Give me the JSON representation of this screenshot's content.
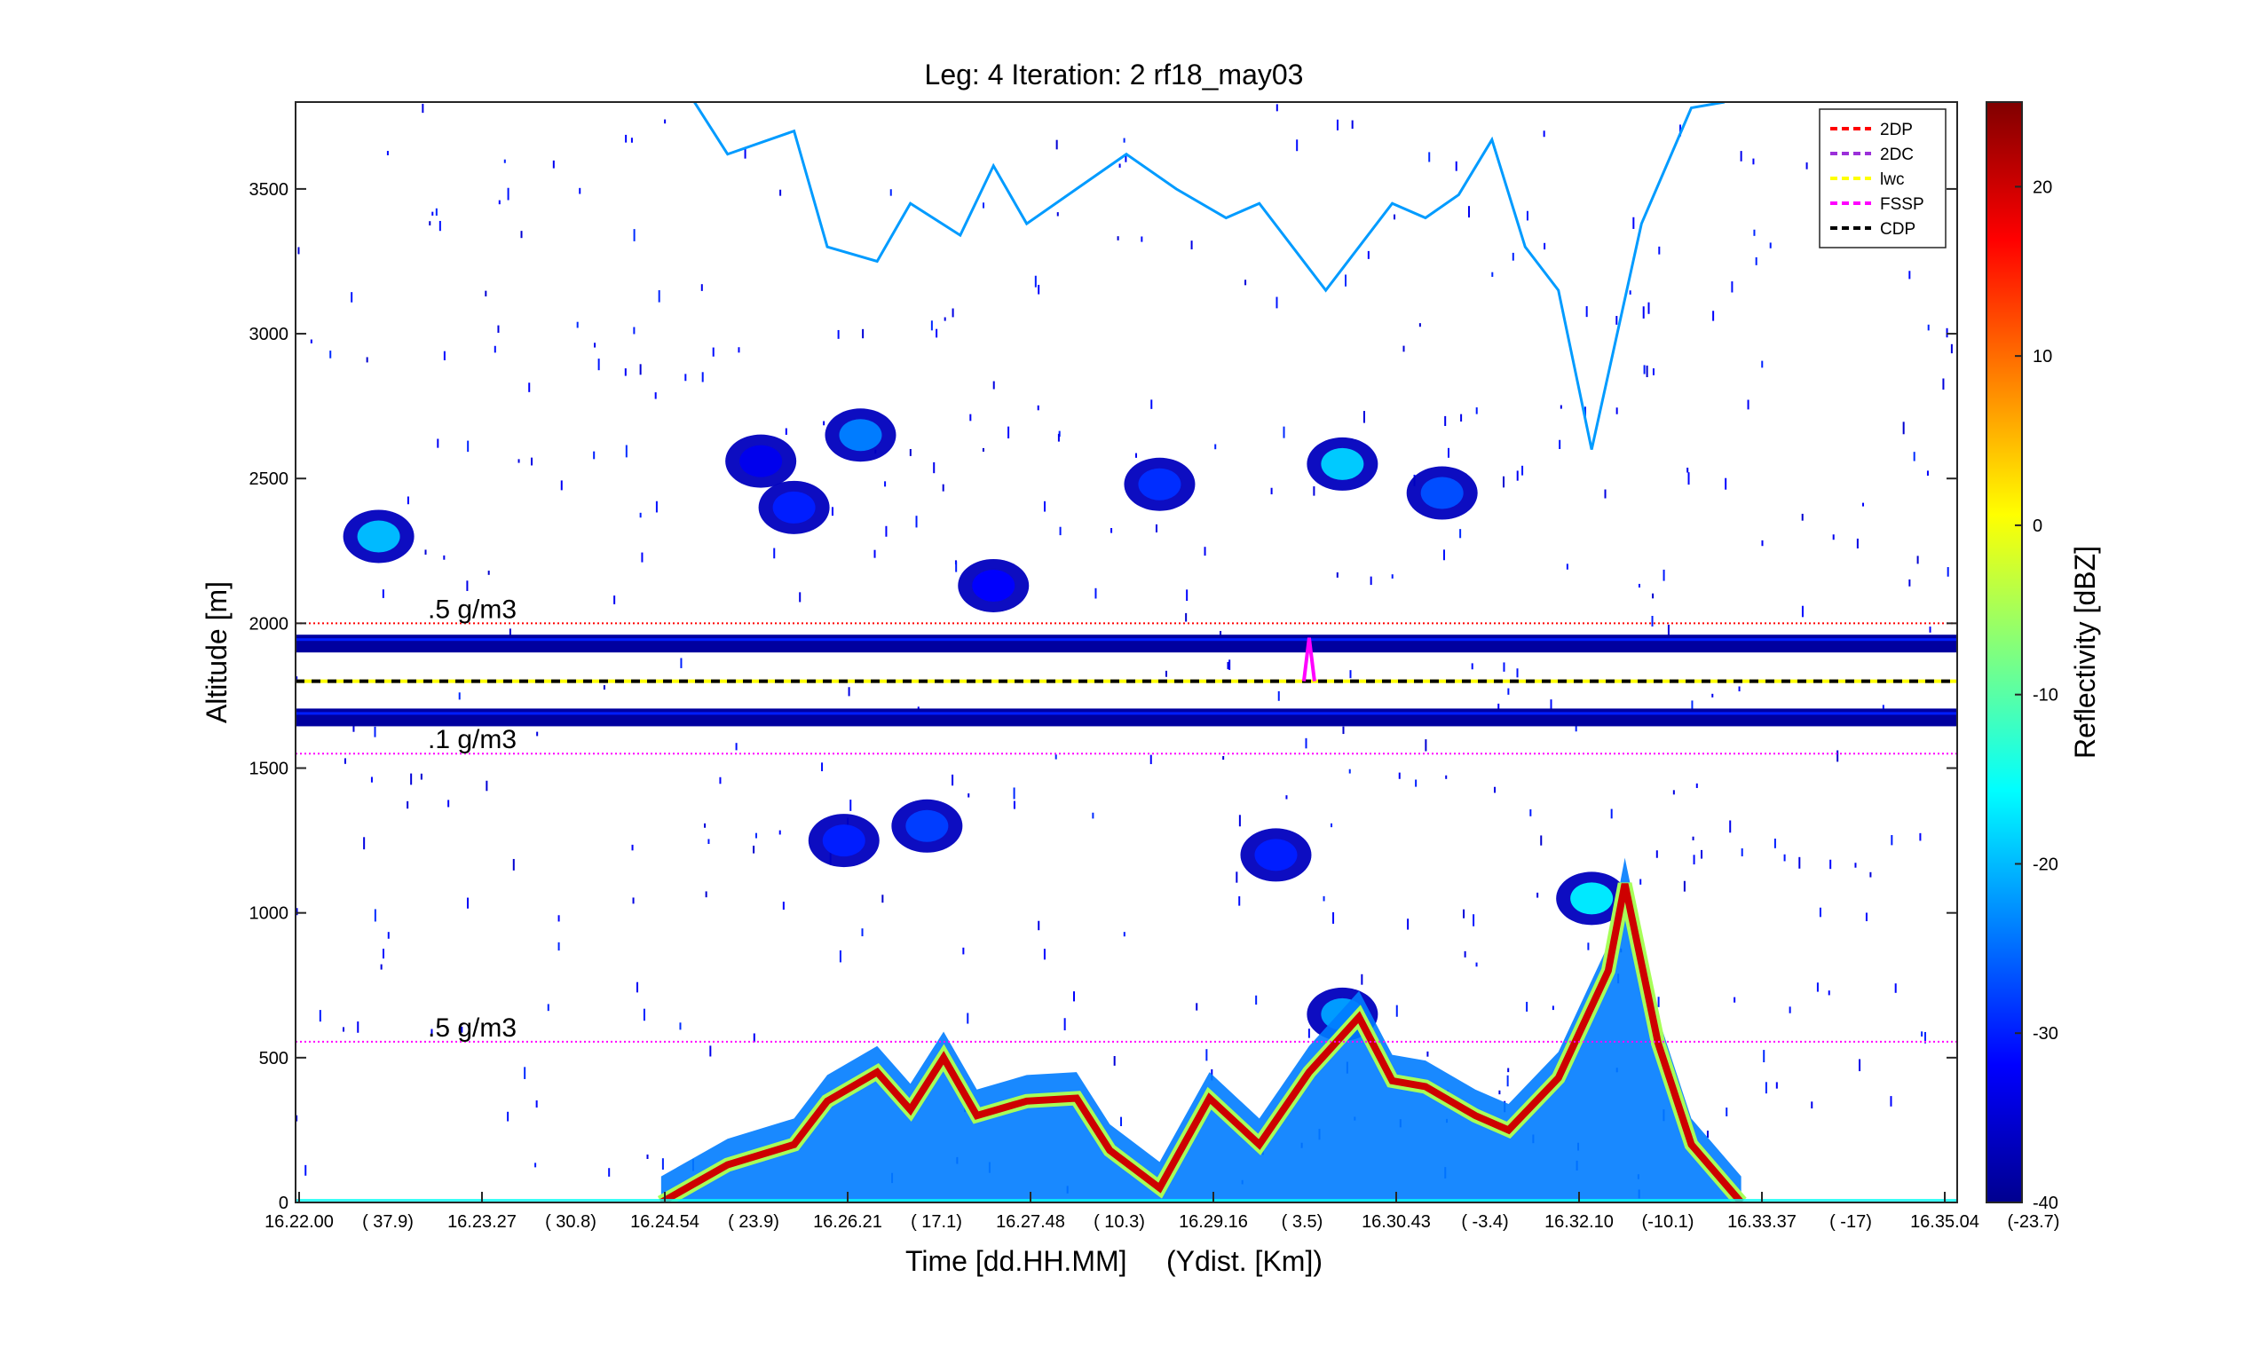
{
  "chart_data": {
    "type": "heatmap",
    "title": "Leg: 4  Iteration: 2  rf18_may03",
    "xlabel": "Time [dd.HH.MM]     (Ydist. [Km])",
    "ylabel": "Altitude [m]",
    "colorbar_label": "Reflectivity [dBZ]",
    "ylim": [
      0,
      3800
    ],
    "yticks": [
      0,
      500,
      1000,
      1500,
      2000,
      2500,
      3000,
      3500
    ],
    "xticks": [
      {
        "time": "16.22.00",
        "ydist": "( 37.9)"
      },
      {
        "time": "16.23.27",
        "ydist": "( 30.8)"
      },
      {
        "time": "16.24.54",
        "ydist": "( 23.9)"
      },
      {
        "time": "16.26.21",
        "ydist": "( 17.1)"
      },
      {
        "time": "16.27.48",
        "ydist": "( 10.3)"
      },
      {
        "time": "16.29.16",
        "ydist": "(  3.5)"
      },
      {
        "time": "16.30.43",
        "ydist": "( -3.4)"
      },
      {
        "time": "16.32.10",
        "ydist": "(-10.1)"
      },
      {
        "time": "16.33.37",
        "ydist": "( -17)"
      },
      {
        "time": "16.35.04",
        "ydist": "(-23.7)"
      }
    ],
    "colorbar": {
      "range": [
        -40,
        25
      ],
      "ticks": [
        -40,
        -30,
        -20,
        -10,
        0,
        10,
        20
      ],
      "colormap": "jet"
    },
    "legend": {
      "placement": "top-right",
      "entries": [
        {
          "label": "2DP",
          "color": "#ff0000"
        },
        {
          "label": "2DC",
          "color": "#9b30d9"
        },
        {
          "label": "lwc",
          "color": "#ffff00"
        },
        {
          "label": "FSSP",
          "color": "#ff00ff"
        },
        {
          "label": "CDP",
          "color": "#000000"
        }
      ]
    },
    "reference_lines": [
      {
        "label": ".5 g/m3",
        "altitude": 2000,
        "color": "#ff0000"
      },
      {
        "label": ".1 g/m3",
        "altitude": 1550,
        "color": "#ff00ff"
      },
      {
        "label": ".5 g/m3",
        "altitude": 555,
        "color": "#ff00ff"
      }
    ],
    "instrument_baseline_altitude": 1800,
    "aircraft_bands": [
      {
        "center_altitude": 1930,
        "dbz": -38
      },
      {
        "center_altitude": 1675,
        "dbz": -38
      }
    ],
    "boundary_layer_top": {
      "x_frac": [
        0.22,
        0.26,
        0.3,
        0.32,
        0.35,
        0.37,
        0.39,
        0.41,
        0.44,
        0.47,
        0.49,
        0.52,
        0.55,
        0.58,
        0.61,
        0.64,
        0.66,
        0.68,
        0.71,
        0.73,
        0.76,
        0.79,
        0.8,
        0.82,
        0.84,
        0.87
      ],
      "altitude": [
        0,
        130,
        200,
        350,
        450,
        320,
        500,
        300,
        350,
        360,
        180,
        50,
        360,
        200,
        450,
        640,
        420,
        400,
        300,
        250,
        430,
        800,
        1100,
        550,
        200,
        0
      ],
      "dbz": 20
    },
    "thin_cloud_trace": {
      "x_frac": [
        0.24,
        0.26,
        0.3,
        0.32,
        0.35,
        0.37,
        0.4,
        0.42,
        0.44,
        0.47,
        0.5,
        0.53,
        0.56,
        0.58,
        0.6,
        0.62,
        0.64,
        0.66,
        0.68,
        0.7,
        0.72,
        0.74,
        0.76,
        0.78,
        0.81,
        0.84,
        0.86
      ],
      "altitude": [
        3800,
        3620,
        3700,
        3300,
        3250,
        3450,
        3340,
        3580,
        3380,
        3500,
        3620,
        3500,
        3400,
        3450,
        3300,
        3150,
        3300,
        3450,
        3400,
        3480,
        3670,
        3300,
        3150,
        2600,
        3380,
        3780,
        3800
      ],
      "dbz": -22
    },
    "cloud_patches": [
      {
        "x_frac": 0.05,
        "altitude": 2300,
        "dbz": -20
      },
      {
        "x_frac": 0.28,
        "altitude": 2560,
        "dbz": -33
      },
      {
        "x_frac": 0.3,
        "altitude": 2400,
        "dbz": -30
      },
      {
        "x_frac": 0.34,
        "altitude": 2650,
        "dbz": -24
      },
      {
        "x_frac": 0.42,
        "altitude": 2130,
        "dbz": -32
      },
      {
        "x_frac": 0.52,
        "altitude": 2480,
        "dbz": -29
      },
      {
        "x_frac": 0.63,
        "altitude": 2550,
        "dbz": -19
      },
      {
        "x_frac": 0.69,
        "altitude": 2450,
        "dbz": -27
      },
      {
        "x_frac": 0.33,
        "altitude": 1250,
        "dbz": -30
      },
      {
        "x_frac": 0.38,
        "altitude": 1300,
        "dbz": -28
      },
      {
        "x_frac": 0.59,
        "altitude": 1200,
        "dbz": -30
      },
      {
        "x_frac": 0.63,
        "altitude": 650,
        "dbz": -22
      },
      {
        "x_frac": 0.78,
        "altitude": 1050,
        "dbz": -17
      }
    ],
    "flight_track_spike": {
      "x_frac": 0.61,
      "altitude_range": [
        1800,
        1950
      ]
    }
  }
}
